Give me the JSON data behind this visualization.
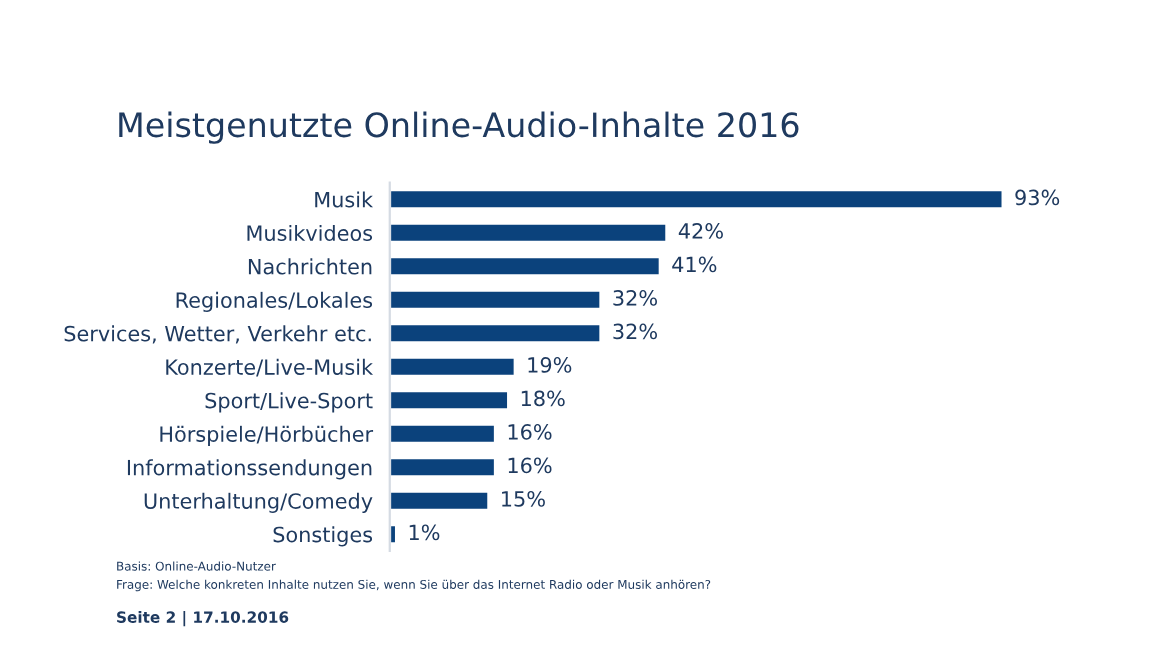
{
  "chart_data": {
    "type": "bar",
    "orientation": "horizontal",
    "title": "Meistgenutzte Online-Audio-Inhalte 2016",
    "categories": [
      "Musik",
      "Musikvideos",
      "Nachrichten",
      "Regionales/Lokales",
      "Services, Wetter, Verkehr etc.",
      "Konzerte/Live-Musik",
      "Sport/Live-Sport",
      "Hörspiele/Hörbücher",
      "Informationssendungen",
      "Unterhaltung/Comedy",
      "Sonstiges"
    ],
    "values": [
      93,
      42,
      41,
      32,
      32,
      19,
      18,
      16,
      16,
      15,
      1
    ],
    "value_labels": [
      "93%",
      "42%",
      "41%",
      "32%",
      "32%",
      "19%",
      "18%",
      "16%",
      "16%",
      "15%",
      "1%"
    ],
    "color": "#0b427c",
    "tick_labels": "y",
    "grid": false,
    "legend": false,
    "annotations": [
      "Basis: Online-Audio-Nutzer",
      "Frage: Welche konkreten Inhalte nutzen Sie, wenn Sie über das Internet Radio oder Musik anhören?",
      "Seite 2 | 17.10.2016"
    ]
  }
}
